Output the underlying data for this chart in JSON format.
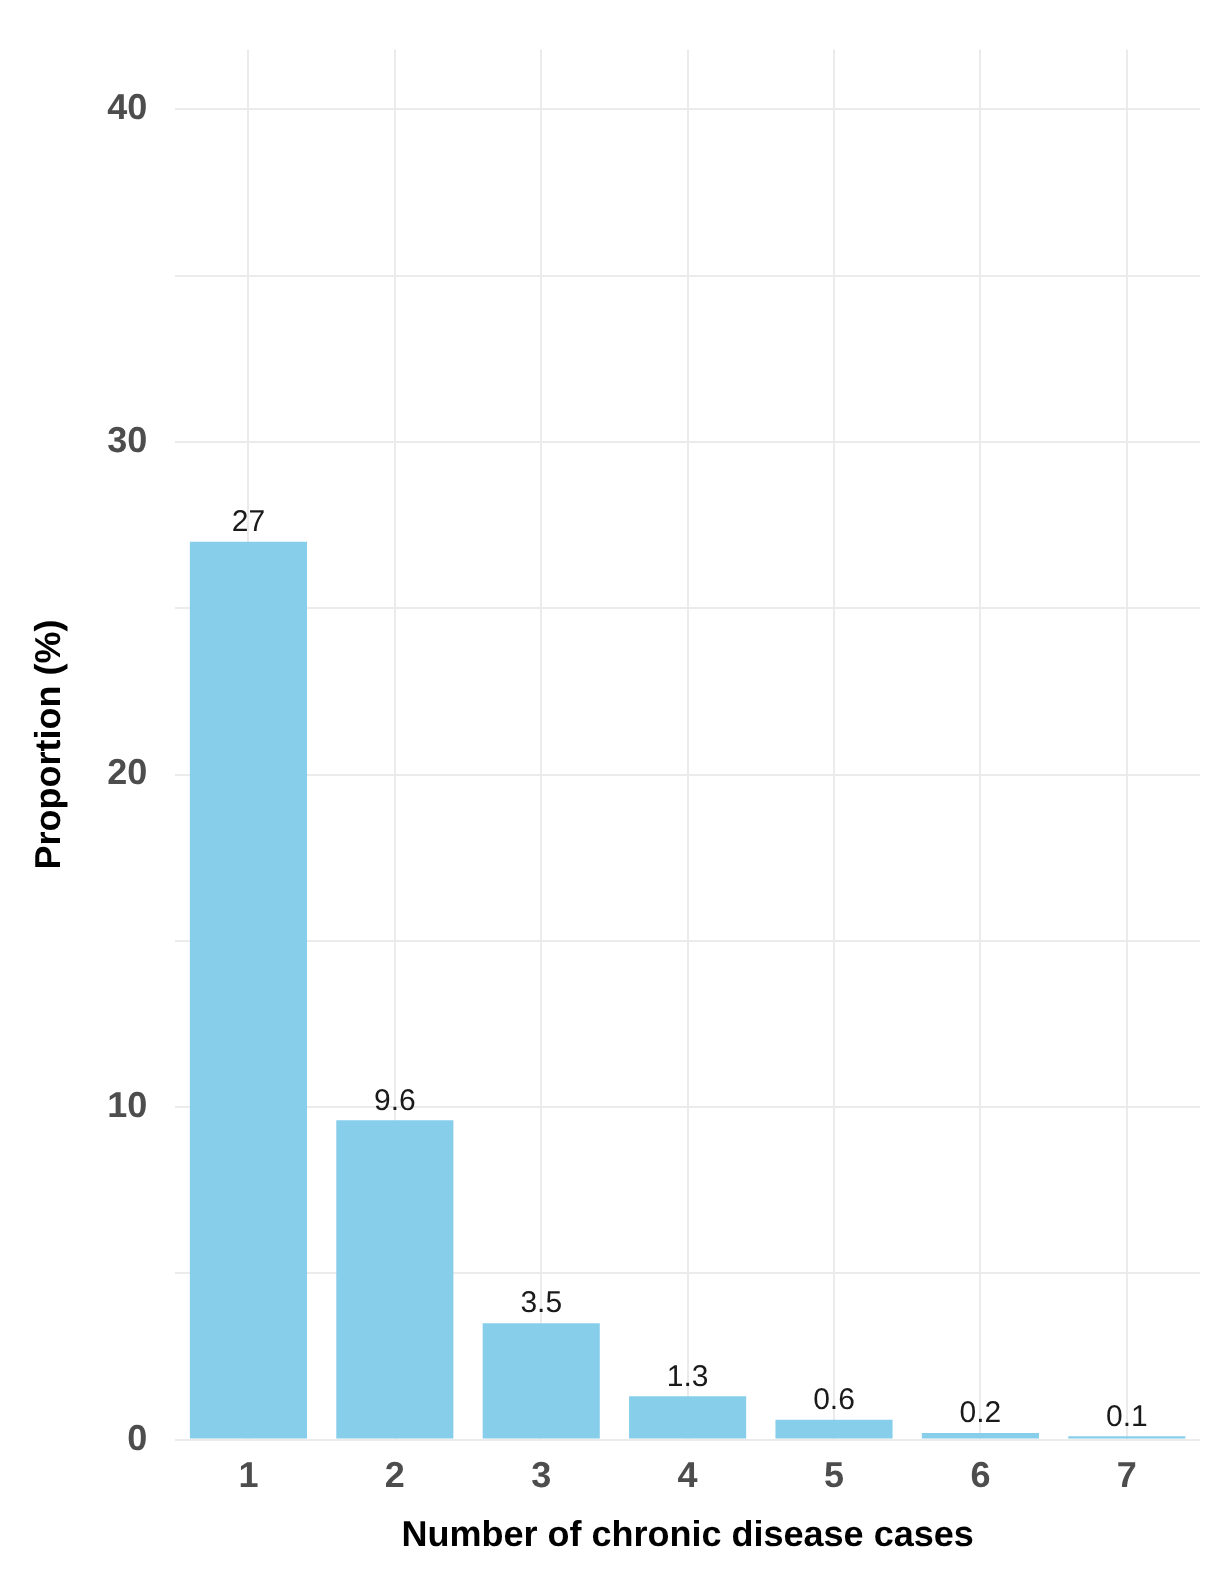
{
  "chart_data": {
    "type": "bar",
    "xlabel": "Number of chronic disease cases",
    "ylabel": "Proportion (%)",
    "categories": [
      "1",
      "2",
      "3",
      "4",
      "5",
      "6",
      "7"
    ],
    "values": [
      27,
      9.6,
      3.5,
      1.3,
      0.6,
      0.2,
      0.1
    ],
    "color": "#87ceeb",
    "ylim": [
      0,
      41.8
    ],
    "yticks": [
      0,
      {
        "value": 5,
        "label": null
      },
      10,
      {
        "value": 15,
        "label": null
      },
      20,
      {
        "value": 25,
        "label": null
      },
      30,
      {
        "value": 35,
        "label": null
      },
      40
    ],
    "grid": true,
    "legend": false,
    "data_labels": true
  }
}
